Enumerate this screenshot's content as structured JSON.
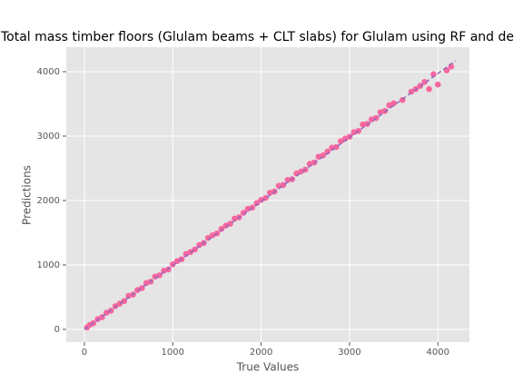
{
  "chart_data": {
    "type": "scatter",
    "title": "Total mass timber floors (Glulam beams + CLT slabs) for Glulam using RF and de",
    "xlabel": "True Values",
    "ylabel": "Predictions",
    "xlim": [
      -205,
      4357
    ],
    "ylim": [
      -197,
      4380
    ],
    "xticks": [
      0,
      1000,
      2000,
      3000,
      4000
    ],
    "yticks": [
      0,
      1000,
      2000,
      3000,
      4000
    ],
    "grid": true,
    "background": "#e5e5e5",
    "series": [
      {
        "color": "#f7679e",
        "x": [
          30,
          60,
          100,
          150,
          200,
          250,
          300,
          350,
          400,
          450,
          500,
          550,
          600,
          650,
          700,
          750,
          800,
          850,
          900,
          950,
          1000,
          1050,
          1100,
          1150,
          1200,
          1250,
          1300,
          1350,
          1400,
          1450,
          1500,
          1550,
          1600,
          1650,
          1700,
          1750,
          1800,
          1850,
          1900,
          1950,
          2000,
          2050,
          2100,
          2150,
          2200,
          2250,
          2300,
          2350,
          2400,
          2450,
          2500,
          2550,
          2600,
          2650,
          2700,
          2750,
          2800,
          2850,
          2900,
          2950,
          3000,
          3050,
          3100,
          3150,
          3200,
          3250,
          3300,
          3350,
          3400,
          3450,
          3500,
          3600,
          3700,
          3750,
          3800,
          3850,
          3900,
          3950,
          4000,
          4100,
          4150
        ],
        "values": [
          30,
          70,
          95,
          160,
          190,
          260,
          290,
          360,
          400,
          440,
          520,
          540,
          610,
          640,
          720,
          740,
          820,
          840,
          910,
          930,
          1010,
          1060,
          1090,
          1170,
          1200,
          1240,
          1310,
          1340,
          1420,
          1460,
          1490,
          1560,
          1610,
          1640,
          1720,
          1740,
          1810,
          1870,
          1890,
          1960,
          2010,
          2040,
          2120,
          2140,
          2230,
          2240,
          2320,
          2330,
          2420,
          2450,
          2480,
          2570,
          2590,
          2680,
          2700,
          2760,
          2820,
          2830,
          2920,
          2960,
          2990,
          3060,
          3080,
          3180,
          3190,
          3260,
          3280,
          3370,
          3390,
          3480,
          3510,
          3560,
          3690,
          3730,
          3780,
          3840,
          3730,
          3960,
          3800,
          4020,
          4080
        ]
      }
    ],
    "reference_line": {
      "color": "#9467bd",
      "x": [
        0,
        4200
      ],
      "values": [
        0,
        4170
      ]
    }
  }
}
